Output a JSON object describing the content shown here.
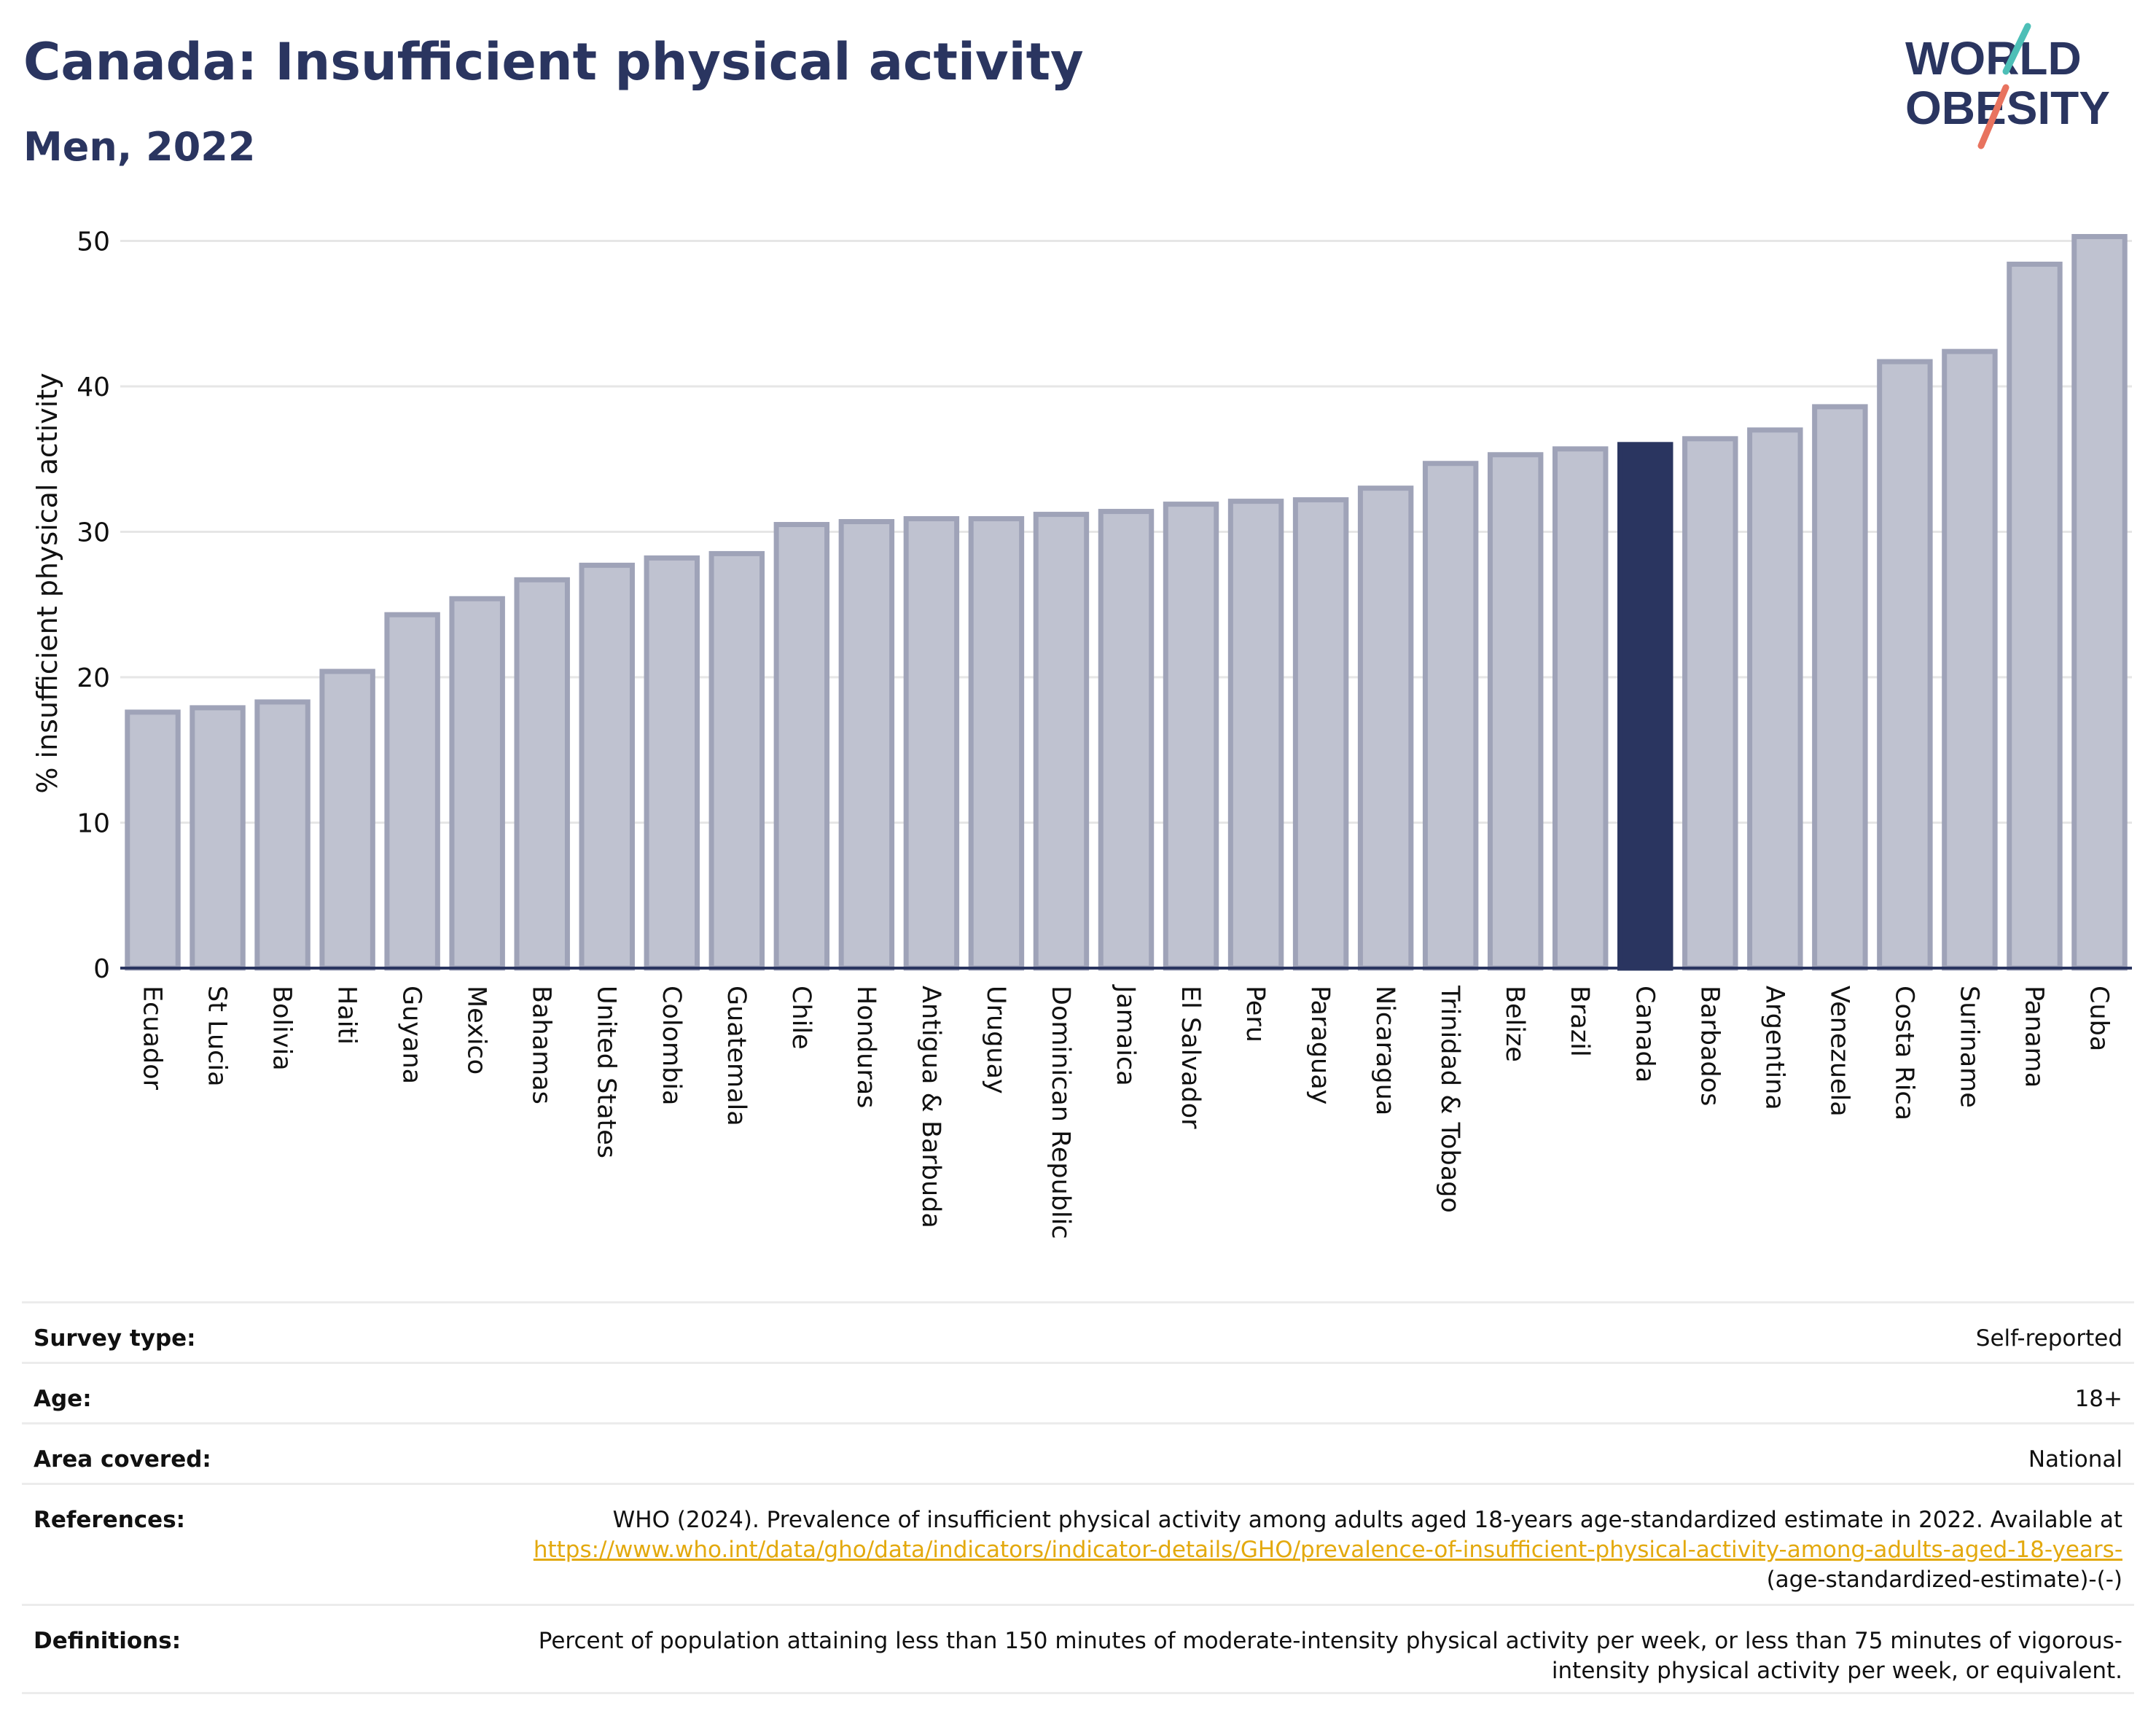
{
  "header": {
    "title": "Canada: Insufficient physical activity",
    "subtitle": "Men, 2022"
  },
  "logo": {
    "line1": "WORLD",
    "line2": "OBESITY",
    "slash_colors": [
      "#4dbfb7",
      "#e8735f"
    ]
  },
  "colors": {
    "bar_default": "#bfc2d0",
    "bar_border": "#9fa3b8",
    "bar_highlight": "#2a3560",
    "text": "#2a3560",
    "link": "#e3a90e"
  },
  "chart_data": {
    "type": "bar",
    "ylabel": "% insufficient physical activity",
    "ylim": [
      0,
      52
    ],
    "yticks": [
      0,
      10,
      20,
      30,
      40,
      50
    ],
    "grid": true,
    "highlight": "Canada",
    "categories": [
      "Ecuador",
      "St Lucia",
      "Bolivia",
      "Haiti",
      "Guyana",
      "Mexico",
      "Bahamas",
      "United States",
      "Colombia",
      "Guatemala",
      "Chile",
      "Honduras",
      "Antigua & Barbuda",
      "Uruguay",
      "Dominican Republic",
      "Jamaica",
      "El Salvador",
      "Peru",
      "Paraguay",
      "Nicaragua",
      "Trinidad & Tobago",
      "Belize",
      "Brazil",
      "Canada",
      "Barbados",
      "Argentina",
      "Venezuela",
      "Costa Rica",
      "Suriname",
      "Panama",
      "Cuba"
    ],
    "values": [
      17.6,
      17.9,
      18.3,
      20.4,
      24.3,
      25.4,
      26.7,
      27.7,
      28.2,
      28.5,
      30.5,
      30.7,
      30.9,
      30.9,
      31.2,
      31.4,
      31.9,
      32.1,
      32.2,
      33.0,
      34.7,
      35.3,
      35.7,
      36.0,
      36.4,
      37.0,
      38.6,
      41.7,
      42.4,
      48.4,
      50.3
    ]
  },
  "info": {
    "survey_type": {
      "label": "Survey type:",
      "value": "Self-reported"
    },
    "age": {
      "label": "Age:",
      "value": "18+"
    },
    "area": {
      "label": "Area covered:",
      "value": "National"
    },
    "references": {
      "label": "References:",
      "text": "WHO (2024). Prevalence of insufficient physical activity among adults aged 18-years age-standardized estimate in 2022. Available at",
      "link": "https://www.who.int/data/gho/data/indicators/indicator-details/GHO/prevalence-of-insufficient-physical-activity-among-adults-aged-18-years-",
      "suffix": "(age-standardized-estimate)-(-)"
    },
    "definitions": {
      "label": "Definitions:",
      "value": "Percent of population attaining less than 150 minutes of moderate-intensity physical activity per week, or less than 75 minutes of vigorous-intensity physical activity per week, or equivalent."
    }
  }
}
